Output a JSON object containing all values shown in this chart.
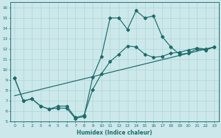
{
  "xlabel": "Humidex (Indice chaleur)",
  "bg_color": "#cce8ea",
  "line_color": "#1e6b6b",
  "grid_color": "#b0d8da",
  "xlim": [
    -0.5,
    23.5
  ],
  "ylim": [
    5,
    16.5
  ],
  "xticks": [
    0,
    1,
    2,
    3,
    4,
    5,
    6,
    7,
    8,
    9,
    10,
    11,
    12,
    13,
    14,
    15,
    16,
    17,
    18,
    19,
    20,
    21,
    22,
    23
  ],
  "yticks": [
    5,
    6,
    7,
    8,
    9,
    10,
    11,
    12,
    13,
    14,
    15,
    16
  ],
  "line1_x": [
    0,
    1,
    2,
    3,
    4,
    5,
    6,
    7,
    8,
    9,
    10,
    11,
    12,
    13,
    14,
    15,
    16,
    17,
    18,
    19,
    20,
    21,
    22,
    23
  ],
  "line1_y": [
    9.2,
    7.0,
    7.2,
    6.5,
    6.2,
    6.3,
    6.3,
    5.3,
    5.5,
    9.3,
    11.3,
    15.0,
    15.0,
    13.9,
    15.7,
    15.0,
    15.2,
    13.2,
    12.2,
    11.5,
    11.6,
    12.0,
    11.9,
    12.2
  ],
  "line2_x": [
    0,
    1,
    2,
    3,
    4,
    5,
    6,
    7,
    8,
    9,
    10,
    11,
    12,
    13,
    14,
    15,
    16,
    17,
    18,
    19,
    20,
    21,
    22,
    23
  ],
  "line2_y": [
    9.2,
    7.0,
    7.2,
    6.5,
    6.2,
    6.5,
    6.5,
    5.4,
    5.6,
    8.1,
    9.6,
    10.8,
    11.5,
    12.3,
    12.2,
    11.5,
    11.2,
    11.3,
    11.6,
    11.7,
    11.9,
    12.1,
    12.0,
    12.2
  ],
  "line3_x": [
    0,
    23
  ],
  "line3_y": [
    7.5,
    12.2
  ],
  "marker": "D",
  "markersize": 2.2,
  "linewidth": 0.9
}
